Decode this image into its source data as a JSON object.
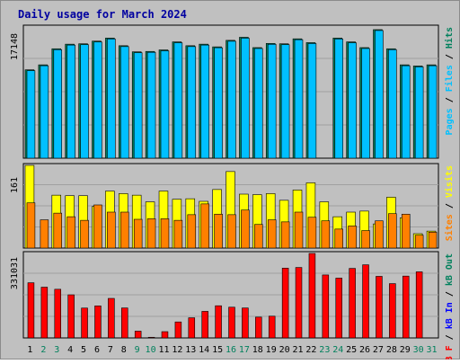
{
  "chart_data": [
    {
      "type": "bar",
      "title": "Daily usage for March 2024",
      "categories": [
        "1",
        "2",
        "3",
        "4",
        "5",
        "6",
        "7",
        "8",
        "9",
        "10",
        "11",
        "12",
        "13",
        "14",
        "15",
        "16",
        "17",
        "18",
        "19",
        "20",
        "21",
        "22",
        "23",
        "24",
        "25",
        "26",
        "27",
        "28",
        "29",
        "30",
        "31"
      ],
      "weekend_days": [
        "2",
        "3",
        "9",
        "10",
        "16",
        "17",
        "23",
        "24",
        "30",
        "31"
      ],
      "ylim": [
        0,
        17148
      ],
      "ylabel": "Pages / Files / Hits",
      "y_tick_label": "17148",
      "series": [
        {
          "name": "Hits",
          "color": "#00805c",
          "values": [
            11550,
            12200,
            14300,
            14900,
            14950,
            15300,
            15700,
            14700,
            13900,
            13950,
            14150,
            15200,
            14700,
            14900,
            14550,
            15400,
            15800,
            14450,
            15000,
            14950,
            15600,
            15100,
            null,
            15700,
            15200,
            14450,
            16800,
            14300,
            12200,
            12050,
            12200
          ]
        },
        {
          "name": "Files",
          "color": "#00c0ff",
          "values": [
            11550,
            12200,
            14300,
            14900,
            14950,
            15300,
            15700,
            14700,
            13900,
            13950,
            14150,
            15200,
            14700,
            14900,
            14550,
            15400,
            15800,
            14450,
            15000,
            14950,
            15600,
            15100,
            null,
            15700,
            15200,
            14450,
            16800,
            14300,
            12200,
            12050,
            12200
          ]
        },
        {
          "name": "Pages",
          "color": "#00c0ff",
          "values": [
            null,
            null,
            null,
            null,
            null,
            null,
            null,
            null,
            null,
            null,
            null,
            null,
            null,
            null,
            null,
            null,
            null,
            null,
            null,
            null,
            null,
            null,
            null,
            null,
            null,
            null,
            null,
            null,
            null,
            null,
            null
          ]
        }
      ]
    },
    {
      "type": "bar",
      "ylim": [
        0,
        161
      ],
      "ylabel": "Visits / Sites",
      "y_tick_label": "161",
      "series": [
        {
          "name": "Visits",
          "color": "#ffff00",
          "values": [
            161,
            null,
            103,
            102,
            102,
            81,
            111,
            106,
            103,
            90,
            111,
            95,
            96,
            91,
            114,
            149,
            105,
            104,
            106,
            93,
            113,
            127,
            90,
            61,
            70,
            72,
            47,
            99,
            59,
            28,
            33
          ]
        },
        {
          "name": "Sites",
          "color": "#ff8000",
          "values": [
            88,
            55,
            68,
            61,
            54,
            84,
            70,
            70,
            56,
            57,
            57,
            54,
            65,
            86,
            66,
            65,
            74,
            46,
            55,
            51,
            70,
            60,
            53,
            37,
            43,
            34,
            53,
            67,
            66,
            25,
            31
          ]
        }
      ]
    },
    {
      "type": "bar",
      "ylim": [
        0,
        331031
      ],
      "ylabel": "kB F / kB In / kB Out",
      "y_tick_label": "331031",
      "series": [
        {
          "name": "kB F",
          "color": "#ff0000",
          "values": [
            216200,
            198900,
            190700,
            168900,
            117100,
            125500,
            154900,
            117500,
            26600,
            2600,
            24600,
            62700,
            79000,
            104100,
            126100,
            120500,
            117400,
            81600,
            85300,
            273500,
            276100,
            331031,
            246800,
            234400,
            272500,
            286600,
            241400,
            212800,
            242400,
            259000,
            null
          ]
        },
        {
          "name": "kB In",
          "color": "#0000ff",
          "values": []
        },
        {
          "name": "kB Out",
          "color": "#00805c",
          "values": []
        }
      ]
    }
  ]
}
